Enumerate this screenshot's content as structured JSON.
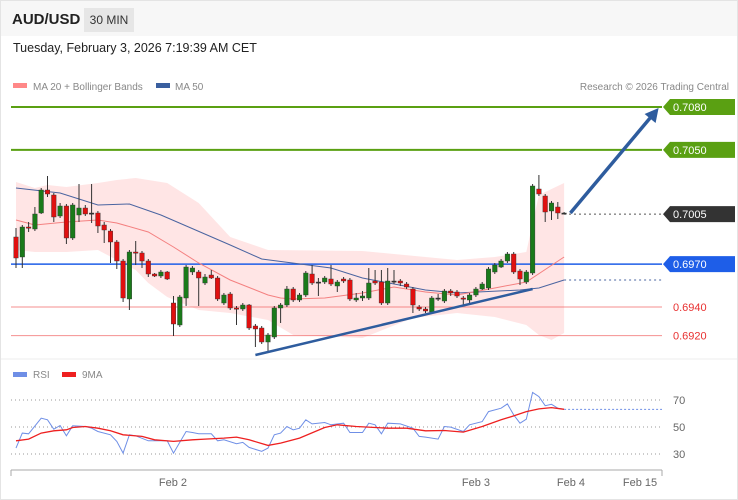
{
  "header": {
    "symbol": "AUD/USD",
    "timeframe": "30 MIN"
  },
  "datetime": "Tuesday, February 3, 2026 7:19:39 AM CET",
  "legend": {
    "ma20": "MA 20 + Bollinger Bands",
    "ma50": "MA 50",
    "credit": "Research © 2026 Trading Central"
  },
  "rsi_legend": {
    "rsi": "RSI",
    "ma9": "9MA"
  },
  "colors": {
    "green_level": "#5aa012",
    "current": "#333333",
    "pivot": "#1e5ee8",
    "support": "#f06060",
    "up": "#1a7a1a",
    "down": "#e01010",
    "bands": "#ffe0e0",
    "ma20": "#f48080",
    "ma50": "#4a64a0",
    "arrow": "#2e5c9e",
    "rsi": "#6f8fe6",
    "rsi_ma": "#ee2020"
  },
  "levels": [
    {
      "value": "0.7080",
      "price": 0.708,
      "type": "resistance",
      "style": "green-box"
    },
    {
      "value": "0.7050",
      "price": 0.705,
      "type": "resistance",
      "style": "green-box"
    },
    {
      "value": "0.7005",
      "price": 0.7005,
      "type": "current",
      "style": "dark-box"
    },
    {
      "value": "0.6970",
      "price": 0.697,
      "type": "pivot",
      "style": "blue-box"
    },
    {
      "value": "0.6940",
      "price": 0.694,
      "type": "support",
      "style": "red-text"
    },
    {
      "value": "0.6920",
      "price": 0.692,
      "type": "support",
      "style": "red-text"
    }
  ],
  "chart_data": [
    {
      "type": "candlestick",
      "title": "AUD/USD",
      "ohlc": [
        [
          0.6989,
          0.69953,
          0.69673,
          0.69743
        ],
        [
          0.6975,
          0.69974,
          0.69673,
          0.6996
        ],
        [
          0.6996,
          0.69995,
          0.69925,
          0.69953
        ],
        [
          0.69946,
          0.701,
          0.69932,
          0.70051
        ],
        [
          0.70058,
          0.70233,
          0.70051,
          0.70219
        ],
        [
          0.70219,
          0.70317,
          0.7017,
          0.70191
        ],
        [
          0.70184,
          0.70198,
          0.69995,
          0.7003
        ],
        [
          0.70037,
          0.70128,
          0.70023,
          0.70107
        ],
        [
          0.70107,
          0.70121,
          0.69841,
          0.69883
        ],
        [
          0.69883,
          0.70128,
          0.69869,
          0.70114
        ],
        [
          0.70044,
          0.70261,
          0.69995,
          0.70093
        ],
        [
          0.70093,
          0.70114,
          0.70037,
          0.70051
        ],
        [
          0.70058,
          0.70261,
          0.69988,
          0.70058
        ],
        [
          0.70058,
          0.70072,
          0.69918,
          0.69967
        ],
        [
          0.69974,
          0.69995,
          0.69848,
          0.69939
        ],
        [
          0.69932,
          0.69946,
          0.69708,
          0.69855
        ],
        [
          0.69855,
          0.69869,
          0.69666,
          0.69722
        ],
        [
          0.69722,
          0.69736,
          0.69435,
          0.69463
        ],
        [
          0.69456,
          0.69799,
          0.69379,
          0.69785
        ],
        [
          0.69785,
          0.69862,
          0.69694,
          0.69778
        ],
        [
          0.69778,
          0.69792,
          0.69673,
          0.69722
        ],
        [
          0.69722,
          0.69736,
          0.6961,
          0.69631
        ],
        [
          0.69631,
          0.69638,
          0.6961,
          0.69617
        ],
        [
          0.69617,
          0.69659,
          0.69603,
          0.69645
        ],
        [
          0.69645,
          0.69652,
          0.69589,
          0.69596
        ],
        [
          0.69428,
          0.69477,
          0.69197,
          0.69281
        ],
        [
          0.69274,
          0.69484,
          0.6926,
          0.6947
        ],
        [
          0.69463,
          0.69694,
          0.69407,
          0.6968
        ],
        [
          0.69645,
          0.69687,
          0.69624,
          0.69673
        ],
        [
          0.69645,
          0.69659,
          0.69407,
          0.69603
        ],
        [
          0.69568,
          0.69631,
          0.69554,
          0.6961
        ],
        [
          0.69624,
          0.69659,
          0.69596,
          0.69603
        ],
        [
          0.69603,
          0.69617,
          0.69442,
          0.69456
        ],
        [
          0.69428,
          0.69498,
          0.69414,
          0.69484
        ],
        [
          0.69491,
          0.69505,
          0.69379,
          0.69393
        ],
        [
          0.69393,
          0.69407,
          0.69274,
          0.69386
        ],
        [
          0.69386,
          0.69428,
          0.69372,
          0.69414
        ],
        [
          0.69414,
          0.69421,
          0.69239,
          0.69253
        ],
        [
          0.69267,
          0.69281,
          0.6912,
          0.69246
        ],
        [
          0.69253,
          0.69267,
          0.69141,
          0.69155
        ],
        [
          0.69155,
          0.69218,
          0.69085,
          0.69204
        ],
        [
          0.6919,
          0.69407,
          0.69176,
          0.69393
        ],
        [
          0.69393,
          0.69428,
          0.69288,
          0.69414
        ],
        [
          0.69414,
          0.69547,
          0.694,
          0.69526
        ],
        [
          0.69526,
          0.6954,
          0.69435,
          0.69449
        ],
        [
          0.69449,
          0.69498,
          0.69435,
          0.69484
        ],
        [
          0.69484,
          0.69652,
          0.6947,
          0.69638
        ],
        [
          0.69631,
          0.69694,
          0.69554,
          0.69568
        ],
        [
          0.69575,
          0.69603,
          0.69477,
          0.69575
        ],
        [
          0.69575,
          0.69617,
          0.69561,
          0.69603
        ],
        [
          0.69596,
          0.69694,
          0.69547,
          0.69561
        ],
        [
          0.69547,
          0.69589,
          0.69505,
          0.69575
        ],
        [
          0.69596,
          0.6961,
          0.69568,
          0.69582
        ],
        [
          0.69589,
          0.69603,
          0.69442,
          0.69456
        ],
        [
          0.69449,
          0.69498,
          0.69435,
          0.69463
        ],
        [
          0.69463,
          0.69512,
          0.69442,
          0.69477
        ],
        [
          0.69463,
          0.69673,
          0.69449,
          0.69568
        ],
        [
          0.69582,
          0.69659,
          0.69554,
          0.69568
        ],
        [
          0.69575,
          0.69659,
          0.69414,
          0.69428
        ],
        [
          0.69428,
          0.69673,
          0.69414,
          0.69582
        ],
        [
          0.69582,
          0.69659,
          0.69561,
          0.69582
        ],
        [
          0.69582,
          0.69596,
          0.69547,
          0.69568
        ],
        [
          0.69561,
          0.69575,
          0.69526,
          0.6954
        ],
        [
          0.69526,
          0.6954,
          0.69358,
          0.69414
        ],
        [
          0.694,
          0.69414,
          0.69372,
          0.69386
        ],
        [
          0.69386,
          0.694,
          0.69358,
          0.69372
        ],
        [
          0.69365,
          0.69477,
          0.69351,
          0.69463
        ],
        [
          0.69463,
          0.69491,
          0.69442,
          0.69463
        ],
        [
          0.69442,
          0.69526,
          0.69428,
          0.69512
        ],
        [
          0.69512,
          0.69526,
          0.69477,
          0.69498
        ],
        [
          0.69505,
          0.69519,
          0.69463,
          0.69477
        ],
        [
          0.69463,
          0.69477,
          0.69414,
          0.69456
        ],
        [
          0.69449,
          0.69498,
          0.69428,
          0.69484
        ],
        [
          0.69484,
          0.6954,
          0.6947,
          0.69526
        ],
        [
          0.69526,
          0.69575,
          0.69519,
          0.69561
        ],
        [
          0.69533,
          0.6968,
          0.69519,
          0.69666
        ],
        [
          0.69645,
          0.69708,
          0.69631,
          0.69694
        ],
        [
          0.6968,
          0.69736,
          0.69673,
          0.69722
        ],
        [
          0.69722,
          0.69785,
          0.69708,
          0.69771
        ],
        [
          0.69771,
          0.69785,
          0.69631,
          0.69645
        ],
        [
          0.69652,
          0.69666,
          0.69554,
          0.69596
        ],
        [
          0.69575,
          0.69659,
          0.69561,
          0.69645
        ],
        [
          0.69638,
          0.70261,
          0.69624,
          0.70247
        ],
        [
          0.70226,
          0.70324,
          0.70177,
          0.70191
        ],
        [
          0.70177,
          0.70191,
          0.69995,
          0.70065
        ],
        [
          0.70072,
          0.70142,
          0.70009,
          0.70128
        ],
        [
          0.701,
          0.70135,
          0.70016,
          0.70058
        ],
        [
          0.70058,
          0.70065,
          0.70051,
          0.70058
        ]
      ],
      "ma20": [
        [
          0,
          0.70009
        ],
        [
          3,
          0.69974
        ],
        [
          8,
          0.69995
        ],
        [
          13,
          0.70009
        ],
        [
          16,
          0.69988
        ],
        [
          21,
          0.69925
        ],
        [
          25,
          0.6982
        ],
        [
          29,
          0.69708
        ],
        [
          34,
          0.69589
        ],
        [
          40,
          0.69484
        ],
        [
          42,
          0.69463
        ],
        [
          44,
          0.69456
        ],
        [
          49,
          0.69463
        ],
        [
          55,
          0.69498
        ],
        [
          60,
          0.6954
        ],
        [
          65,
          0.69505
        ],
        [
          70,
          0.69484
        ],
        [
          76,
          0.69533
        ],
        [
          81,
          0.69575
        ],
        [
          87,
          0.6975
        ]
      ],
      "bb_upper": [
        [
          0,
          0.70275
        ],
        [
          3,
          0.70233
        ],
        [
          5,
          0.70254
        ],
        [
          8,
          0.7024
        ],
        [
          13,
          0.70268
        ],
        [
          16,
          0.70289
        ],
        [
          19,
          0.70303
        ],
        [
          24,
          0.70268
        ],
        [
          29,
          0.70128
        ],
        [
          34,
          0.6989
        ],
        [
          40,
          0.69799
        ],
        [
          55,
          0.69792
        ],
        [
          65,
          0.6975
        ],
        [
          70,
          0.69729
        ],
        [
          76,
          0.6975
        ],
        [
          81,
          0.69785
        ],
        [
          83,
          0.70184
        ],
        [
          87,
          0.70268
        ]
      ],
      "bb_lower": [
        [
          0,
          0.69799
        ],
        [
          3,
          0.69785
        ],
        [
          8,
          0.69785
        ],
        [
          13,
          0.69799
        ],
        [
          19,
          0.69659
        ],
        [
          21,
          0.69568
        ],
        [
          24,
          0.6947
        ],
        [
          29,
          0.69379
        ],
        [
          34,
          0.69358
        ],
        [
          40,
          0.69309
        ],
        [
          44,
          0.69204
        ],
        [
          55,
          0.69183
        ],
        [
          63,
          0.69323
        ],
        [
          70,
          0.69358
        ],
        [
          76,
          0.6933
        ],
        [
          81,
          0.69274
        ],
        [
          83,
          0.69204
        ],
        [
          85,
          0.69169
        ],
        [
          87,
          0.69218
        ]
      ],
      "ma50": [
        [
          0,
          0.70233
        ],
        [
          7,
          0.70198
        ],
        [
          13,
          0.70114
        ],
        [
          18,
          0.70121
        ],
        [
          23,
          0.70044
        ],
        [
          34,
          0.69834
        ],
        [
          39,
          0.69736
        ],
        [
          50,
          0.69673
        ],
        [
          55,
          0.69603
        ],
        [
          65,
          0.69519
        ],
        [
          70,
          0.69498
        ],
        [
          80,
          0.69519
        ],
        [
          83,
          0.69533
        ],
        [
          87,
          0.69589
        ]
      ],
      "trendline": [
        [
          38,
          0.69064
        ],
        [
          82,
          0.69526
        ]
      ],
      "forecast_arrow": [
        [
          88,
          0.70058
        ],
        [
          102,
          0.70793
        ]
      ],
      "ylim": [
        0.6906,
        0.709
      ]
    },
    {
      "type": "line",
      "title": "RSI",
      "rsi": [
        [
          0,
          34.4
        ],
        [
          1,
          45.5
        ],
        [
          2,
          45
        ],
        [
          4,
          56.5
        ],
        [
          5,
          55.3
        ],
        [
          6,
          48.4
        ],
        [
          7,
          51.1
        ],
        [
          8,
          43.5
        ],
        [
          9,
          50.9
        ],
        [
          11,
          50.4
        ],
        [
          12,
          49.1
        ],
        [
          13,
          46.7
        ],
        [
          15,
          44.2
        ],
        [
          16,
          39.3
        ],
        [
          17,
          30.7
        ],
        [
          18,
          44.2
        ],
        [
          19,
          43.5
        ],
        [
          21,
          39.8
        ],
        [
          24,
          39.8
        ],
        [
          25,
          30.7
        ],
        [
          27,
          46.7
        ],
        [
          28,
          45.9
        ],
        [
          29,
          45
        ],
        [
          31,
          45
        ],
        [
          32,
          39.8
        ],
        [
          33,
          40.5
        ],
        [
          35,
          37.6
        ],
        [
          36,
          38.6
        ],
        [
          37,
          34.9
        ],
        [
          39,
          32
        ],
        [
          40,
          34.4
        ],
        [
          41,
          44.2
        ],
        [
          42,
          45.5
        ],
        [
          43,
          50.4
        ],
        [
          44,
          47.9
        ],
        [
          45,
          49.1
        ],
        [
          46,
          55.3
        ],
        [
          47,
          52.3
        ],
        [
          49,
          53.3
        ],
        [
          50,
          51.6
        ],
        [
          52,
          52.8
        ],
        [
          53,
          45.9
        ],
        [
          55,
          45.9
        ],
        [
          56,
          52.8
        ],
        [
          57,
          51.6
        ],
        [
          58,
          45
        ],
        [
          59,
          52.8
        ],
        [
          61,
          52.3
        ],
        [
          63,
          49.1
        ],
        [
          64,
          43
        ],
        [
          65,
          42.5
        ],
        [
          67,
          41
        ],
        [
          68,
          50.4
        ],
        [
          69,
          49.9
        ],
        [
          71,
          46.7
        ],
        [
          72,
          51.6
        ],
        [
          74,
          54
        ],
        [
          75,
          61.4
        ],
        [
          77,
          63.9
        ],
        [
          78,
          67.1
        ],
        [
          79,
          59
        ],
        [
          80,
          52.8
        ],
        [
          81,
          55.8
        ],
        [
          82,
          75.6
        ],
        [
          83,
          72.5
        ],
        [
          84,
          65.8
        ],
        [
          85,
          66.8
        ],
        [
          86,
          63.9
        ],
        [
          87,
          63.1
        ]
      ],
      "ma9": [
        [
          0,
          39.8
        ],
        [
          2,
          41
        ],
        [
          4,
          45.5
        ],
        [
          6,
          47.2
        ],
        [
          8,
          47.9
        ],
        [
          9,
          49.6
        ],
        [
          11,
          50.4
        ],
        [
          13,
          49.1
        ],
        [
          15,
          47.2
        ],
        [
          17,
          44.2
        ],
        [
          20,
          43
        ],
        [
          22,
          40.5
        ],
        [
          25,
          39.3
        ],
        [
          28,
          40.5
        ],
        [
          30,
          41
        ],
        [
          33,
          41.8
        ],
        [
          35,
          42.5
        ],
        [
          37,
          40.5
        ],
        [
          40,
          36.4
        ],
        [
          42,
          38.1
        ],
        [
          45,
          41.8
        ],
        [
          49,
          49.6
        ],
        [
          51,
          51.6
        ],
        [
          54,
          50.4
        ],
        [
          57,
          49.6
        ],
        [
          59,
          49.1
        ],
        [
          62,
          49.1
        ],
        [
          65,
          47.2
        ],
        [
          68,
          47.4
        ],
        [
          71,
          46.2
        ],
        [
          74,
          50.4
        ],
        [
          77,
          55.3
        ],
        [
          79,
          58.2
        ],
        [
          81,
          61.4
        ],
        [
          83,
          63.4
        ],
        [
          85,
          64.4
        ],
        [
          87,
          63.1
        ]
      ],
      "yticks": [
        "70",
        "50",
        "30"
      ],
      "ylim": [
        20,
        85
      ]
    }
  ],
  "xaxis": {
    "ticks": [
      "Feb 2",
      "Feb 3",
      "Feb 4",
      "Feb 15"
    ]
  }
}
